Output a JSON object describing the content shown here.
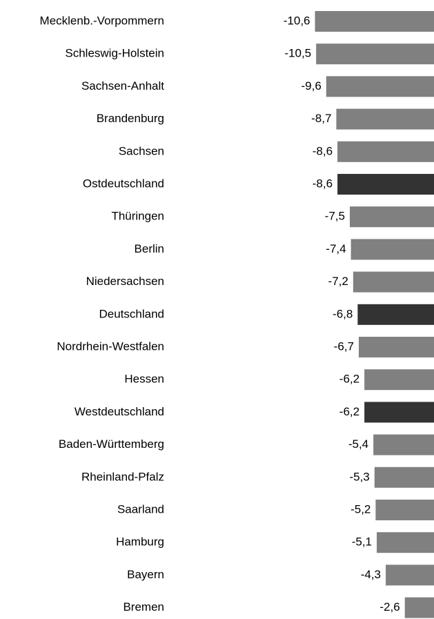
{
  "chart_data": {
    "type": "barh",
    "categories": [
      "Mecklenb.-Vorpommern",
      "Schleswig-Holstein",
      "Sachsen-Anhalt",
      "Brandenburg",
      "Sachsen",
      "Ostdeutschland",
      "Thüringen",
      "Berlin",
      "Niedersachsen",
      "Deutschland",
      "Nordrhein-Westfalen",
      "Hessen",
      "Westdeutschland",
      "Baden-Württemberg",
      "Rheinland-Pfalz",
      "Saarland",
      "Hamburg",
      "Bayern",
      "Bremen"
    ],
    "values": [
      -10.6,
      -10.5,
      -9.6,
      -8.7,
      -8.6,
      -8.6,
      -7.5,
      -7.4,
      -7.2,
      -6.8,
      -6.7,
      -6.2,
      -6.2,
      -5.4,
      -5.3,
      -5.2,
      -5.1,
      -4.3,
      -2.6
    ],
    "value_labels": [
      "-10,6",
      "-10,5",
      "-9,6",
      "-8,7",
      "-8,6",
      "-8,6",
      "-7,5",
      "-7,4",
      "-7,2",
      "-6,8",
      "-6,7",
      "-6,2",
      "-6,2",
      "-5,4",
      "-5,3",
      "-5,2",
      "-5,1",
      "-4,3",
      "-2,6"
    ],
    "colors": [
      "#808080",
      "#808080",
      "#808080",
      "#808080",
      "#808080",
      "#333333",
      "#808080",
      "#808080",
      "#808080",
      "#333333",
      "#808080",
      "#808080",
      "#333333",
      "#808080",
      "#808080",
      "#808080",
      "#808080",
      "#808080",
      "#808080"
    ],
    "xlim": [
      -11,
      0
    ]
  }
}
